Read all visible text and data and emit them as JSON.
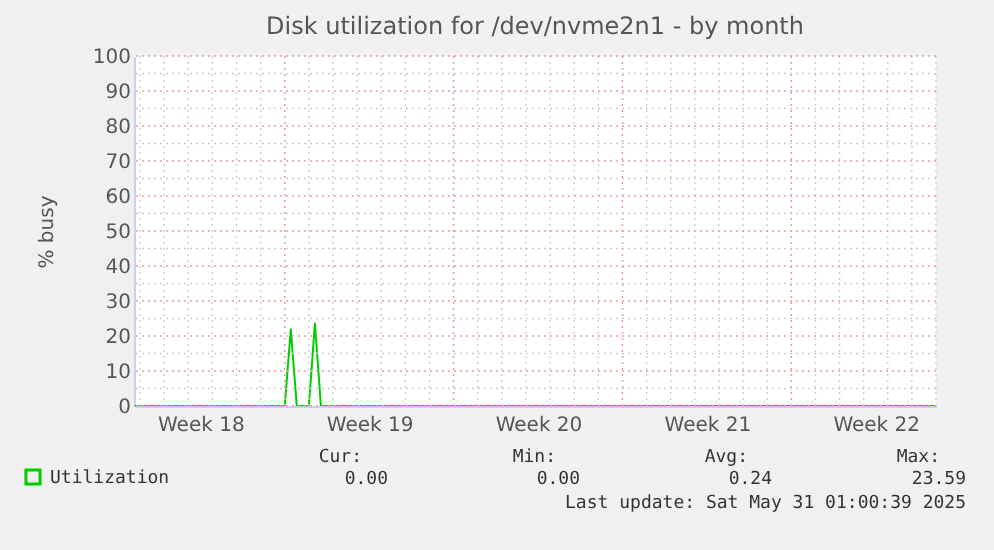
{
  "chart_data": {
    "type": "line",
    "title": "Disk utilization for /dev/nvme2n1 - by month",
    "ylabel": "% busy",
    "categories": [
      null,
      null,
      null,
      null,
      null,
      null,
      null,
      null,
      null,
      null,
      null,
      "Week 18",
      null,
      null,
      null,
      null,
      null,
      null,
      null,
      null,
      null,
      null,
      null,
      null,
      null,
      null,
      null,
      null,
      null,
      null,
      null,
      null,
      null,
      null,
      null,
      null,
      null,
      null,
      null,
      "Week 19",
      null,
      null,
      null,
      null,
      null,
      null,
      null,
      null,
      null,
      null,
      null,
      null,
      null,
      null,
      null,
      null,
      null,
      null,
      null,
      null,
      null,
      null,
      null,
      null,
      null,
      null,
      null,
      "Week 20",
      null,
      null,
      null,
      null,
      null,
      null,
      null,
      null,
      null,
      null,
      null,
      null,
      null,
      null,
      null,
      null,
      null,
      null,
      null,
      null,
      null,
      null,
      null,
      null,
      null,
      null,
      null,
      "Week 21",
      null,
      null,
      null,
      null,
      null,
      null,
      null,
      null,
      null,
      null,
      null,
      null,
      null,
      null,
      null,
      null,
      null,
      null,
      null,
      null,
      null,
      null,
      null,
      null,
      null,
      null,
      null,
      "Week 22",
      null,
      null,
      null,
      null,
      null,
      null,
      null,
      null,
      null,
      null
    ],
    "series": [
      {
        "name": "Utilization",
        "color": "#00cc00",
        "values": [
          0,
          0,
          0,
          0,
          0,
          0,
          0,
          0,
          0,
          0,
          0,
          0,
          0,
          0,
          0,
          0,
          0,
          0,
          0,
          0,
          0,
          0,
          0,
          0,
          0,
          0,
          21.9,
          0,
          0,
          0,
          23.59,
          0,
          0,
          0,
          0,
          0,
          0,
          0,
          0,
          0,
          0,
          0,
          0,
          0,
          0,
          0,
          0,
          0,
          0,
          0,
          0,
          0,
          0,
          0,
          0,
          0,
          0,
          0,
          0,
          0,
          0,
          0,
          0,
          0,
          0,
          0,
          0,
          0,
          0,
          0,
          0,
          0,
          0,
          0,
          0,
          0,
          0,
          0,
          0,
          0,
          0,
          0,
          0,
          0,
          0,
          0,
          0,
          0,
          0,
          0,
          0,
          0,
          0,
          0,
          0,
          0,
          0,
          0,
          0,
          0,
          0,
          0,
          0,
          0,
          0,
          0,
          0,
          0,
          0,
          0,
          0,
          0,
          0,
          0,
          0,
          0,
          0,
          0,
          0,
          0,
          0,
          0,
          0,
          0,
          0,
          0,
          0,
          0,
          0,
          0,
          0,
          0,
          0,
          0
        ]
      }
    ],
    "ylim": [
      0,
      100
    ],
    "yticks": [
      0,
      10,
      20,
      30,
      40,
      50,
      60,
      70,
      80,
      90,
      100
    ],
    "grid": true,
    "legend": "bottom left",
    "marker": "none",
    "line_style": "solid",
    "annotations": [
      "Cur:",
      "0.00",
      "Min:",
      "0.00",
      "Avg:",
      "0.24",
      "Max:",
      "23.59",
      "Last update: Sat May 31 01:00:39 2025"
    ]
  }
}
